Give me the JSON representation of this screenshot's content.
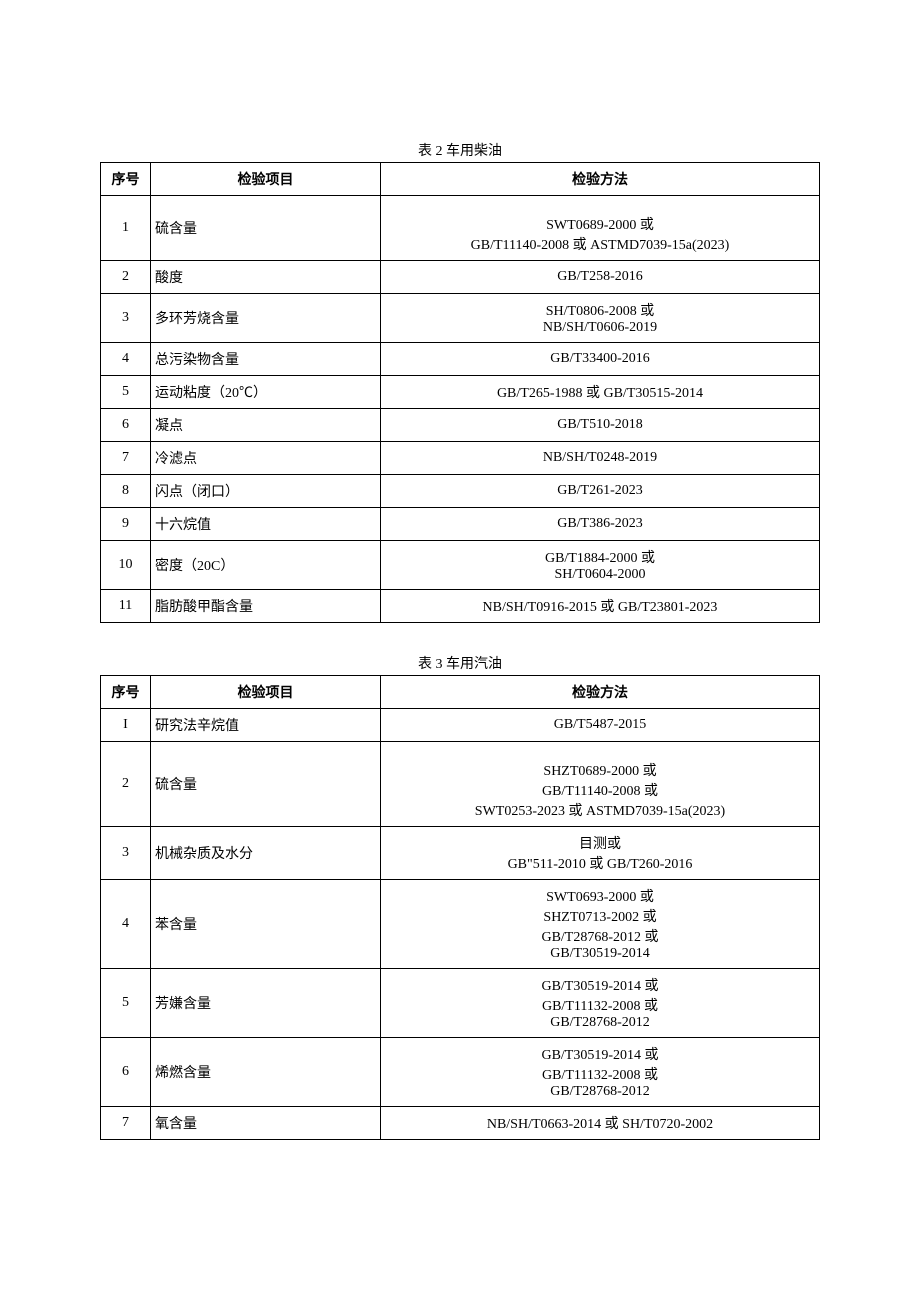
{
  "tables": [
    {
      "caption": "表 2 车用柴油",
      "headers": {
        "seq": "序号",
        "item": "检验项目",
        "method": "检验方法"
      },
      "rows": [
        {
          "seq": "1",
          "item": "硫含量",
          "tall": true,
          "methods": [
            "SWT0689-2000 或",
            "GB/T11140-2008 或 ASTMD7039-15a(2023)"
          ]
        },
        {
          "seq": "2",
          "item": "酸度",
          "methods": [
            "GB/T258-2016"
          ]
        },
        {
          "seq": "3",
          "item": "多环芳烧含量",
          "methods": [
            "SH/T0806-2008 或",
            "NB/SH/T0606-2019"
          ]
        },
        {
          "seq": "4",
          "item": "总污染物含量",
          "methods": [
            "GB/T33400-2016"
          ]
        },
        {
          "seq": "5",
          "item": "运动粘度（20℃）",
          "methods": [
            "GB/T265-1988 或 GB/T30515-2014"
          ]
        },
        {
          "seq": "6",
          "item": "凝点",
          "methods": [
            "GB/T510-2018"
          ]
        },
        {
          "seq": "7",
          "item": "冷滤点",
          "methods": [
            "NB/SH/T0248-2019"
          ]
        },
        {
          "seq": "8",
          "item": "闪点（闭口）",
          "methods": [
            "GB/T261-2023"
          ]
        },
        {
          "seq": "9",
          "item": "十六烷值",
          "methods": [
            "GB/T386-2023"
          ]
        },
        {
          "seq": "10",
          "item": "密度（20C）",
          "methods": [
            "GB/T1884-2000 或",
            "SH/T0604-2000"
          ]
        },
        {
          "seq": "11",
          "item": "脂肪酸甲酯含量",
          "methods": [
            "NB/SH/T0916-2015 或 GB/T23801-2023"
          ]
        }
      ]
    },
    {
      "caption": "表 3 车用汽油",
      "headers": {
        "seq": "序号",
        "item": "检验项目",
        "method": "检验方法"
      },
      "rows": [
        {
          "seq": "I",
          "item": "研究法辛烷值",
          "methods": [
            "GB/T5487-2015"
          ]
        },
        {
          "seq": "2",
          "item": "硫含量",
          "tall": true,
          "methods": [
            "SHZT0689-2000 或",
            "GB/T11140-2008 或",
            "SWT0253-2023 或 ASTMD7039-15a(2023)"
          ]
        },
        {
          "seq": "3",
          "item": "机械杂质及水分",
          "methods": [
            "目测或",
            "GB\"511-2010 或 GB/T260-2016"
          ]
        },
        {
          "seq": "4",
          "item": "苯含量",
          "methods": [
            "SWT0693-2000 或",
            "SHZT0713-2002 或",
            "GB/T28768-2012 或",
            "GB/T30519-2014"
          ]
        },
        {
          "seq": "5",
          "item": "芳嫌含量",
          "methods": [
            "GB/T30519-2014 或",
            "GB/T11132-2008 或",
            "GB/T28768-2012"
          ]
        },
        {
          "seq": "6",
          "item": "烯燃含量",
          "methods": [
            "GB/T30519-2014 或",
            "GB/T11132-2008 或",
            "GB/T28768-2012"
          ]
        },
        {
          "seq": "7",
          "item": "氧含量",
          "methods": [
            "NB/SH/T0663-2014 或 SH/T0720-2002"
          ]
        }
      ]
    }
  ]
}
